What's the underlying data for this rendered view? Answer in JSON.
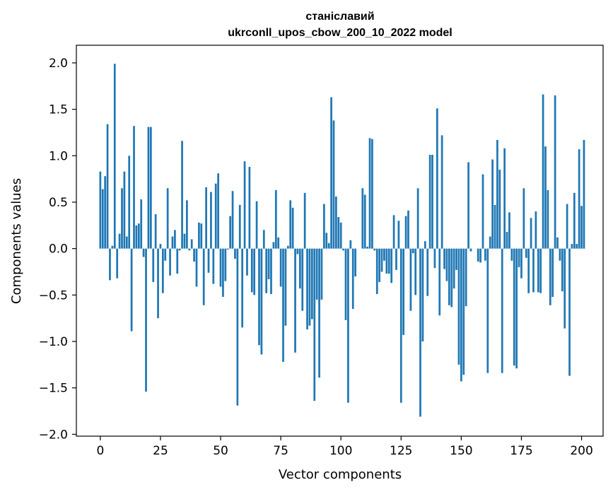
{
  "chart_data": {
    "type": "bar",
    "title_line1": "станіславий",
    "title_line2": "ukrconll_upos_cbow_200_10_2022 model",
    "xlabel": "Vector components",
    "ylabel": "Components values",
    "xlim": [
      -9.95,
      208.95
    ],
    "ylim": [
      -2.02,
      2.19
    ],
    "xticks": [
      0,
      25,
      50,
      75,
      100,
      125,
      150,
      175,
      200
    ],
    "yticks": [
      -2.0,
      -1.5,
      -1.0,
      -0.5,
      0.0,
      0.5,
      1.0,
      1.5,
      2.0
    ],
    "ytick_labels": [
      "−2.0",
      "−1.5",
      "−1.0",
      "−0.5",
      "0.0",
      "0.5",
      "1.0",
      "1.5",
      "2.0"
    ],
    "bar_color": "#1f77b4",
    "values": [
      0.83,
      0.64,
      0.78,
      1.34,
      -0.34,
      0.03,
      1.99,
      -0.32,
      0.16,
      0.65,
      0.83,
      0.13,
      1.0,
      -0.89,
      1.32,
      0.25,
      0.27,
      0.53,
      -0.09,
      -1.54,
      1.31,
      1.31,
      -0.36,
      0.37,
      -0.75,
      0.05,
      -0.48,
      -0.13,
      0.65,
      -0.29,
      0.13,
      0.2,
      -0.27,
      -0.02,
      1.16,
      0.16,
      0.52,
      -0.02,
      0.1,
      -0.14,
      -0.41,
      0.28,
      0.27,
      -0.61,
      0.66,
      -0.26,
      0.61,
      -0.38,
      0.7,
      0.81,
      -0.41,
      -0.52,
      -0.35,
      -0.01,
      0.35,
      0.62,
      -0.11,
      -1.69,
      0.47,
      -0.85,
      0.94,
      -0.29,
      0.88,
      -0.47,
      -0.5,
      0.51,
      -1.04,
      -1.14,
      0.2,
      -0.48,
      -0.33,
      -0.49,
      0.07,
      0.63,
      0.12,
      -0.41,
      -1.22,
      -0.83,
      0.03,
      0.52,
      0.44,
      -1.12,
      -0.06,
      -0.43,
      -0.67,
      0.6,
      -0.87,
      -0.83,
      -0.76,
      -1.64,
      -0.55,
      -1.39,
      -0.55,
      0.48,
      0.17,
      0.06,
      1.63,
      1.38,
      0.56,
      0.34,
      0.28,
      -0.02,
      -0.77,
      -1.66,
      0.09,
      -0.65,
      -0.3,
      0.0,
      0.0,
      0.65,
      0.58,
      0.02,
      1.19,
      1.18,
      -0.02,
      -0.49,
      -0.36,
      -0.25,
      -0.13,
      -0.27,
      -0.27,
      -0.37,
      0.36,
      -0.23,
      0.3,
      -1.66,
      -0.93,
      0.35,
      0.41,
      -0.67,
      -0.05,
      -0.5,
      0.65,
      -1.81,
      -1.0,
      0.08,
      -0.51,
      1.01,
      1.01,
      -0.21,
      1.51,
      -0.72,
      1.22,
      -0.22,
      -0.35,
      -0.61,
      -0.63,
      -0.43,
      -0.23,
      -1.25,
      -1.43,
      -1.36,
      -0.62,
      0.93,
      -0.03,
      0.0,
      0.0,
      -0.14,
      -0.15,
      0.8,
      -0.13,
      -1.34,
      0.13,
      0.96,
      0.47,
      1.17,
      0.85,
      -1.34,
      1.08,
      0.18,
      0.39,
      -0.13,
      -1.26,
      -1.29,
      -0.2,
      -0.32,
      0.65,
      -0.1,
      -0.48,
      0.33,
      -0.47,
      0.4,
      -0.47,
      -0.48,
      1.66,
      1.1,
      0.63,
      -0.61,
      -0.52,
      1.65,
      0.12,
      -0.13,
      -0.46,
      -0.86,
      0.48,
      -1.37,
      0.05,
      0.6,
      0.05,
      1.07,
      0.46,
      1.17
    ]
  }
}
